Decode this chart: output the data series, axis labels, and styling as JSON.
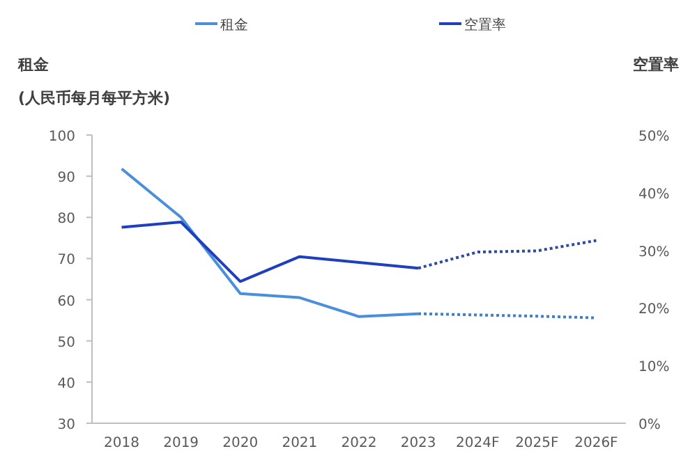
{
  "chart_data": {
    "type": "line",
    "ylabel": "租金",
    "y2label": "空置率",
    "annotations": [
      "(人民币每月每平方米)"
    ],
    "categories": [
      "2018",
      "2019",
      "2020",
      "2021",
      "2022",
      "2023",
      "2024F",
      "2025F",
      "2026F"
    ],
    "series": [
      {
        "name": "租金",
        "color": "#4a8fdc",
        "values": [
          91.8,
          80.0,
          61.5,
          60.5,
          55.9,
          56.6,
          null,
          null,
          null
        ]
      },
      {
        "name": "空置率",
        "color": "#1e3fbf",
        "axis": "y2",
        "values": [
          34.0,
          34.9,
          24.6,
          28.9,
          27.9,
          26.9,
          null,
          null,
          null
        ]
      },
      {
        "color": "#3f7fc4",
        "line_style": "dotted",
        "values": [
          null,
          null,
          null,
          null,
          null,
          56.6,
          56.3,
          56.0,
          55.6
        ]
      },
      {
        "color": "#2e4a9e",
        "line_style": "dotted",
        "axis": "y2",
        "values": [
          null,
          null,
          null,
          null,
          null,
          26.9,
          29.7,
          29.9,
          31.7
        ]
      }
    ],
    "ylim": [
      30,
      100
    ],
    "yticks": [
      30,
      40,
      50,
      60,
      70,
      80,
      90,
      100
    ],
    "y2lim": [
      0,
      50
    ],
    "y2ticks": [
      {
        "value": 0,
        "label": "0%"
      },
      {
        "value": 10,
        "label": "10%"
      },
      {
        "value": 20,
        "label": "20%"
      },
      {
        "value": 30,
        "label": "30%"
      },
      {
        "value": 40,
        "label": "40%"
      },
      {
        "value": 50,
        "label": "50%"
      }
    ],
    "legend": "top",
    "grid": false
  }
}
